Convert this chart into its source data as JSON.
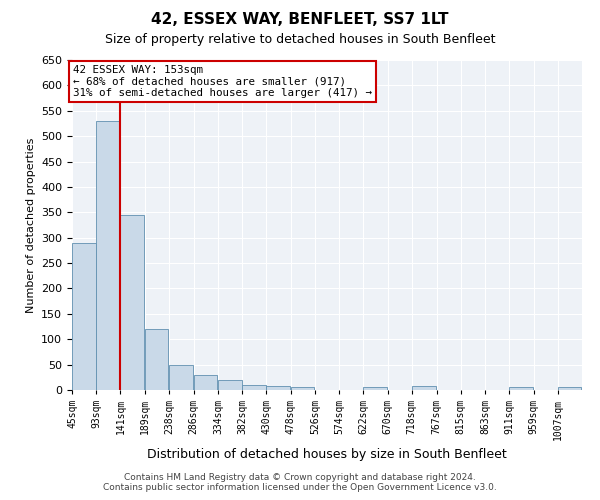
{
  "title": "42, ESSEX WAY, BENFLEET, SS7 1LT",
  "subtitle": "Size of property relative to detached houses in South Benfleet",
  "xlabel": "Distribution of detached houses by size in South Benfleet",
  "ylabel": "Number of detached properties",
  "footer_line1": "Contains HM Land Registry data © Crown copyright and database right 2024.",
  "footer_line2": "Contains public sector information licensed under the Open Government Licence v3.0.",
  "annotation_line1": "42 ESSEX WAY: 153sqm",
  "annotation_line2": "← 68% of detached houses are smaller (917)",
  "annotation_line3": "31% of semi-detached houses are larger (417) →",
  "red_line_x": 141,
  "bar_color": "#c9d9e8",
  "bar_edge_color": "#6090b0",
  "red_line_color": "#cc0000",
  "background_color": "#eef2f7",
  "annotation_box_color": "#ffffff",
  "annotation_box_edge_color": "#cc0000",
  "bins": [
    45,
    93,
    141,
    189,
    238,
    286,
    334,
    382,
    430,
    478,
    526,
    574,
    622,
    670,
    718,
    767,
    815,
    863,
    911,
    959,
    1007
  ],
  "bin_labels": [
    "45sqm",
    "93sqm",
    "141sqm",
    "189sqm",
    "238sqm",
    "286sqm",
    "334sqm",
    "382sqm",
    "430sqm",
    "478sqm",
    "526sqm",
    "574sqm",
    "622sqm",
    "670sqm",
    "718sqm",
    "767sqm",
    "815sqm",
    "863sqm",
    "911sqm",
    "959sqm",
    "1007sqm"
  ],
  "counts": [
    290,
    530,
    345,
    120,
    50,
    30,
    20,
    10,
    7,
    5,
    0,
    0,
    5,
    0,
    7,
    0,
    0,
    0,
    5,
    0,
    5
  ],
  "ylim": [
    0,
    650
  ],
  "yticks": [
    0,
    50,
    100,
    150,
    200,
    250,
    300,
    350,
    400,
    450,
    500,
    550,
    600,
    650
  ]
}
